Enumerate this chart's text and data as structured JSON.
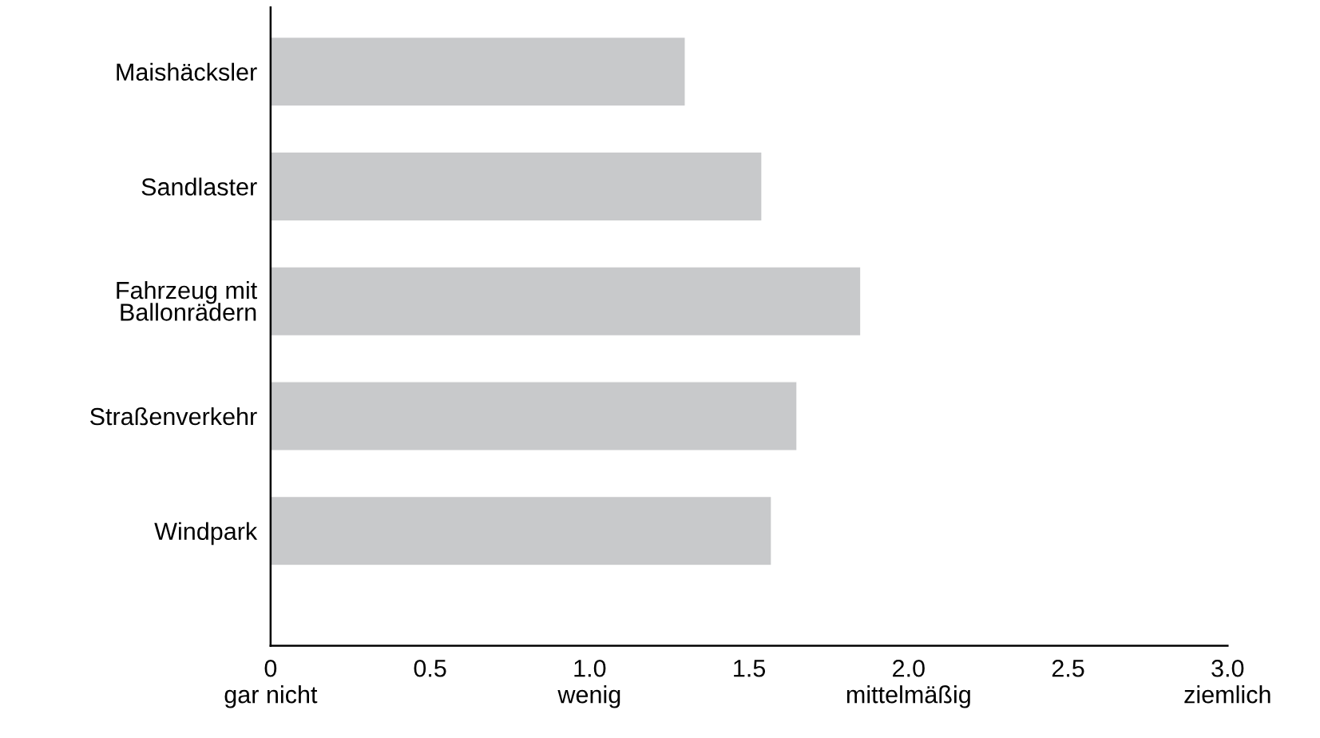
{
  "chart_data": {
    "type": "bar",
    "orientation": "horizontal",
    "categories": [
      "Maishäcksler",
      "Sandlaster",
      "Fahrzeug mit\nBallonrädern",
      "Straßenverkehr",
      "Windpark"
    ],
    "values": [
      1.3,
      1.54,
      1.85,
      1.65,
      1.57
    ],
    "color": "#c8c9cb",
    "xlim": [
      0,
      3.0
    ],
    "xticks": [
      {
        "value": 0,
        "label": "0\ngar nicht"
      },
      0.5,
      {
        "value": 1.0,
        "label": "1.0\nwenig"
      },
      1.5,
      {
        "value": 2.0,
        "label": "2.0\nmittelmäßig"
      },
      2.5,
      {
        "value": 3.0,
        "label": "3.0\nziemlich"
      }
    ],
    "grid": false
  }
}
